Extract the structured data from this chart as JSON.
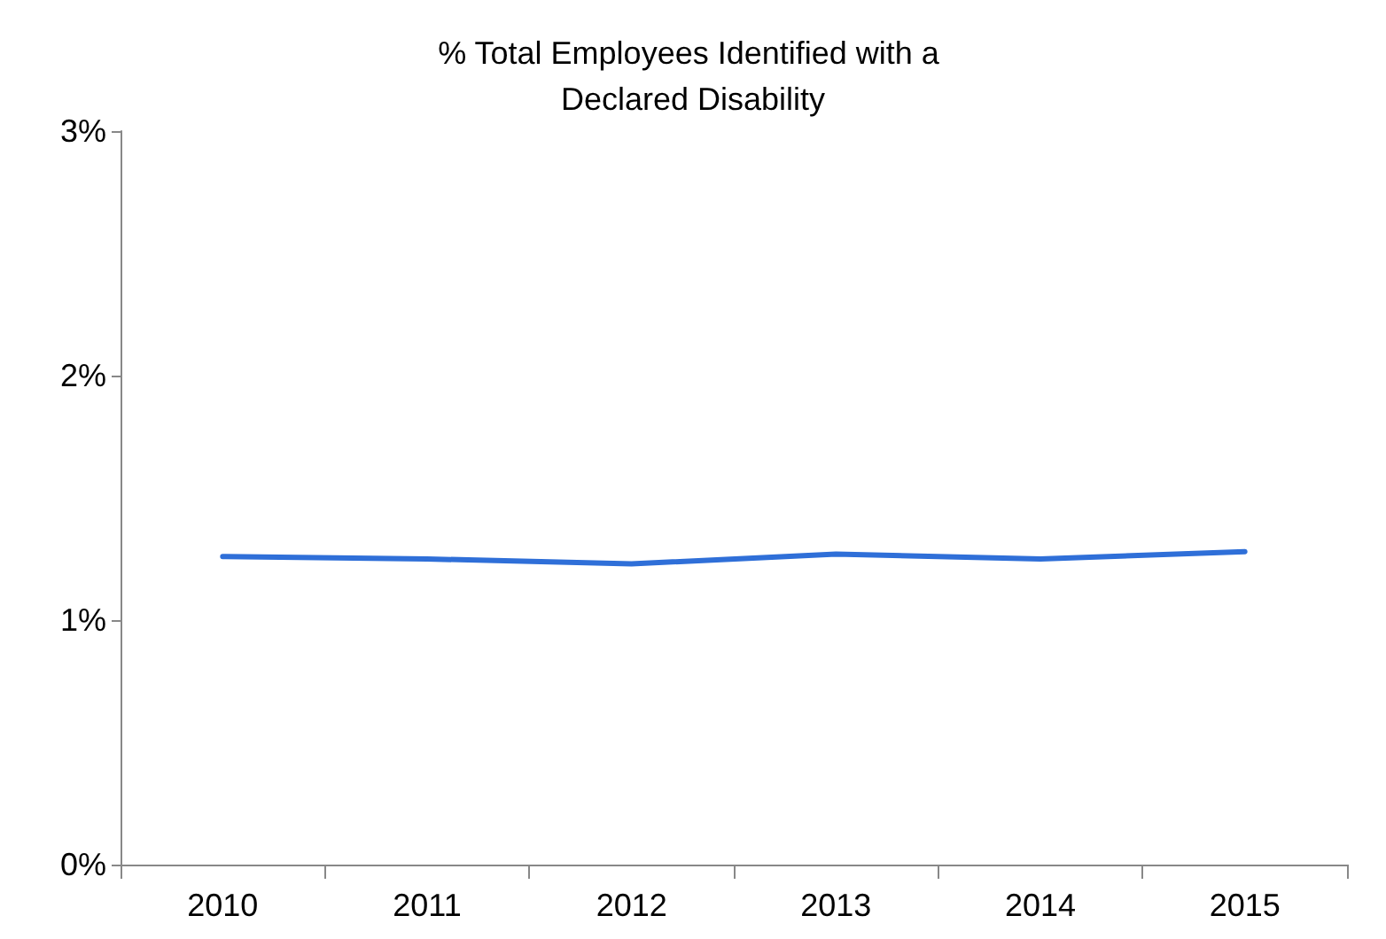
{
  "chart_data": {
    "type": "line",
    "title": "% Total Employees Identified with a Declared Disability",
    "categories": [
      "2010",
      "2011",
      "2012",
      "2013",
      "2014",
      "2015"
    ],
    "series": [
      {
        "color": "#2f6fd8",
        "values": [
          1.26,
          1.25,
          1.23,
          1.27,
          1.25,
          1.28
        ]
      }
    ],
    "ylim": [
      0,
      3
    ],
    "yticks": [
      {
        "value": 0,
        "label": "0%"
      },
      {
        "value": 1,
        "label": "1%"
      },
      {
        "value": 2,
        "label": "2%"
      },
      {
        "value": 3,
        "label": "3%"
      }
    ],
    "grid": false,
    "marker": "none",
    "line_style": "solid"
  }
}
